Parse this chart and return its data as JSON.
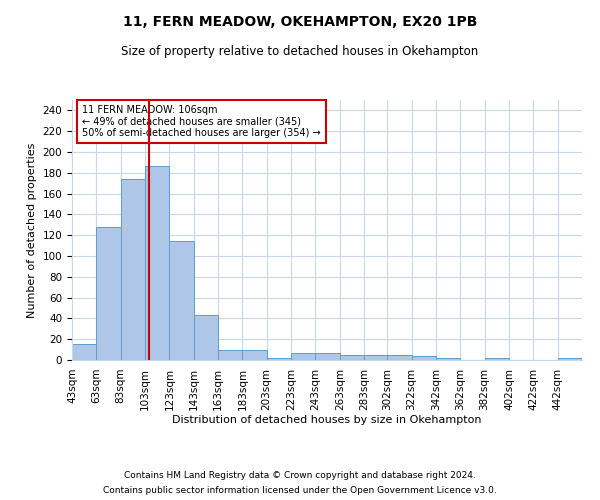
{
  "title1": "11, FERN MEADOW, OKEHAMPTON, EX20 1PB",
  "title2": "Size of property relative to detached houses in Okehampton",
  "xlabel": "Distribution of detached houses by size in Okehampton",
  "ylabel": "Number of detached properties",
  "footnote1": "Contains HM Land Registry data © Crown copyright and database right 2024.",
  "footnote2": "Contains public sector information licensed under the Open Government Licence v3.0.",
  "bin_labels": [
    "43sqm",
    "63sqm",
    "83sqm",
    "103sqm",
    "123sqm",
    "143sqm",
    "163sqm",
    "183sqm",
    "203sqm",
    "223sqm",
    "243sqm",
    "263sqm",
    "283sqm",
    "302sqm",
    "322sqm",
    "342sqm",
    "362sqm",
    "382sqm",
    "402sqm",
    "422sqm",
    "442sqm"
  ],
  "bin_edges": [
    43,
    63,
    83,
    103,
    123,
    143,
    163,
    183,
    203,
    223,
    243,
    263,
    283,
    302,
    322,
    342,
    362,
    382,
    402,
    422,
    442,
    462
  ],
  "bar_heights": [
    15,
    128,
    174,
    187,
    114,
    43,
    10,
    10,
    2,
    7,
    7,
    5,
    5,
    5,
    4,
    2,
    0,
    2,
    0,
    0,
    2
  ],
  "bar_color": "#aec6e8",
  "bar_edge_color": "#5a9fd4",
  "property_line_x": 106,
  "property_line_color": "#cc0000",
  "annotation_line1": "11 FERN MEADOW: 106sqm",
  "annotation_line2": "← 49% of detached houses are smaller (345)",
  "annotation_line3": "50% of semi-detached houses are larger (354) →",
  "annotation_box_color": "#cc0000",
  "ylim": [
    0,
    250
  ],
  "yticks": [
    0,
    20,
    40,
    60,
    80,
    100,
    120,
    140,
    160,
    180,
    200,
    220,
    240
  ],
  "background_color": "#ffffff",
  "grid_color": "#c8d8e8",
  "title1_fontsize": 10,
  "title2_fontsize": 8.5,
  "xlabel_fontsize": 8,
  "ylabel_fontsize": 8,
  "tick_fontsize": 7.5,
  "annotation_fontsize": 7,
  "footnote_fontsize": 6.5
}
